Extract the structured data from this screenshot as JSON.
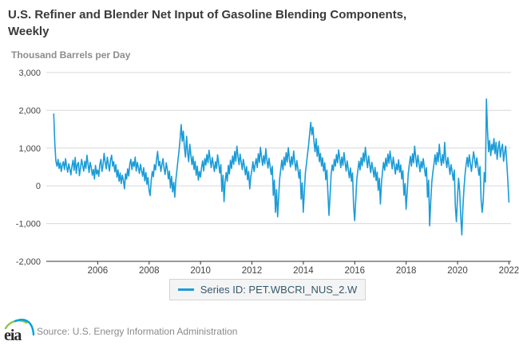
{
  "title_line1": "U.S. Refiner and Blender Net Input of Gasoline Blending Components,",
  "title_line2": "Weekly",
  "units_label": "Thousand Barrels per Day",
  "legend": {
    "label": "Series ID: PET.WBCRI_NUS_2.W",
    "swatch_color": "#1a9cd8"
  },
  "footer": {
    "logo_text": "eia",
    "source": "Source: U.S. Energy Information Administration"
  },
  "colors": {
    "line": "#1a9cd8",
    "grid": "#d8d8d8",
    "axis": "#333333",
    "tick_label": "#444444",
    "title": "#3a3a3a",
    "units": "#8c8c8c",
    "legend_text": "#35596e",
    "legend_bg": "#f4f4f4",
    "legend_border": "#d4d4d4",
    "source_text": "#8a8a8a",
    "logo_green": "#8cc63f",
    "logo_blue": "#00a0dc"
  },
  "chart_data": {
    "type": "line",
    "title": "U.S. Refiner and Blender Net Input of Gasoline Blending Components, Weekly",
    "ylabel": "Thousand Barrels per Day",
    "xlabel": "",
    "series_name": "Series ID: PET.WBCRI_NUS_2.W",
    "grid": "horizontal",
    "legend_position": "bottom",
    "xlim": [
      2004,
      2022.08
    ],
    "ylim": [
      -2000,
      3000
    ],
    "yticks": [
      -2000,
      -1000,
      0,
      1000,
      2000,
      3000
    ],
    "xticks": [
      2006,
      2008,
      2010,
      2012,
      2014,
      2016,
      2018,
      2020,
      2022
    ],
    "x_start": 2004.29,
    "x_step": 0.0416667,
    "values": [
      1900,
      1100,
      650,
      520,
      700,
      460,
      610,
      380,
      560,
      640,
      430,
      720,
      510,
      360,
      580,
      440,
      290,
      520,
      680,
      410,
      750,
      330,
      560,
      620,
      270,
      480,
      700,
      540,
      390,
      650,
      460,
      810,
      570,
      350,
      620,
      490,
      280,
      430,
      180,
      540,
      310,
      420,
      250,
      560,
      700,
      380,
      540,
      860,
      620,
      450,
      760,
      580,
      390,
      680,
      810,
      520,
      640,
      370,
      560,
      230,
      420,
      120,
      340,
      60,
      280,
      150,
      -80,
      320,
      180,
      450,
      260,
      580,
      700,
      430,
      640,
      510,
      760,
      390,
      620,
      480,
      330,
      570,
      410,
      250,
      480,
      130,
      350,
      40,
      220,
      -120,
      -260,
      150,
      380,
      240,
      560,
      420,
      700,
      910,
      530,
      650,
      380,
      560,
      720,
      460,
      300,
      610,
      440,
      180,
      390,
      -60,
      250,
      -160,
      90,
      -300,
      150,
      420,
      680,
      940,
      1250,
      1620,
      1180,
      1450,
      1020,
      760,
      1310,
      890,
      640,
      1100,
      820,
      560,
      780,
      430,
      650,
      280,
      520,
      150,
      380,
      230,
      480,
      660,
      390,
      720,
      550,
      830,
      610,
      940,
      700,
      480,
      750,
      570,
      380,
      640,
      460,
      820,
      590,
      340,
      560,
      -150,
      280,
      -420,
      100,
      350,
      120,
      540,
      310,
      680,
      460,
      790,
      570,
      910,
      650,
      1050,
      780,
      560,
      840,
      620,
      430,
      700,
      520,
      290,
      510,
      160,
      380,
      -80,
      240,
      420,
      640,
      380,
      560,
      720,
      480,
      850,
      620,
      1020,
      760,
      540,
      800,
      580,
      980,
      690,
      470,
      730,
      510,
      300,
      520,
      -250,
      150,
      -700,
      -100,
      -820,
      -300,
      200,
      450,
      680,
      420,
      760,
      540,
      880,
      630,
      1010,
      720,
      500,
      770,
      560,
      920,
      640,
      410,
      670,
      450,
      200,
      430,
      -350,
      80,
      -700,
      -150,
      350,
      600,
      850,
      1100,
      1400,
      1680,
      1350,
      1550,
      1150,
      900,
      1250,
      780,
      1060,
      640,
      860,
      520,
      740,
      390,
      610,
      160,
      420,
      -200,
      -780,
      -250,
      300,
      550,
      400,
      700,
      520,
      830,
      610,
      950,
      720,
      480,
      760,
      540,
      880,
      620,
      390,
      660,
      430,
      210,
      470,
      120,
      340,
      -550,
      -920,
      -350,
      180,
      430,
      650,
      420,
      740,
      530,
      870,
      640,
      1020,
      700,
      480,
      790,
      560,
      350,
      620,
      450,
      230,
      490,
      140,
      360,
      -120,
      200,
      -480,
      100,
      380,
      620,
      410,
      730,
      510,
      840,
      600,
      920,
      680,
      450,
      760,
      530,
      310,
      580,
      420,
      690,
      360,
      550,
      180,
      400,
      -250,
      60,
      -620,
      -150,
      320,
      560,
      780,
      520,
      850,
      610,
      1050,
      740,
      500,
      810,
      590,
      370,
      650,
      470,
      720,
      490,
      260,
      480,
      -300,
      150,
      -1060,
      -400,
      100,
      350,
      580,
      820,
      560,
      880,
      640,
      1100,
      760,
      540,
      830,
      600,
      1150,
      720,
      480,
      750,
      530,
      300,
      560,
      380,
      150,
      420,
      -550,
      -950,
      -300,
      200,
      -150,
      -800,
      -1300,
      -600,
      -100,
      300,
      550,
      750,
      500,
      820,
      600,
      380,
      650,
      900,
      700,
      480,
      740,
      520,
      280,
      510,
      -350,
      -700,
      -400,
      350,
      100,
      2300,
      1500,
      900,
      1200,
      800,
      1100,
      950,
      1250,
      850,
      1150,
      700,
      1000,
      1180,
      760,
      980,
      1100,
      650,
      880,
      1050,
      600,
      150,
      -430
    ]
  }
}
